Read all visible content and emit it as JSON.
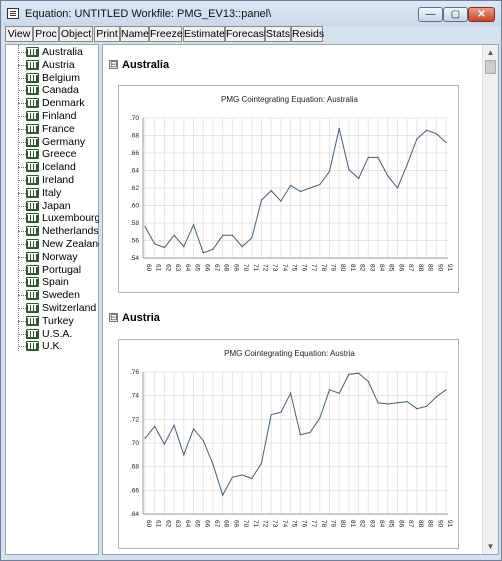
{
  "window": {
    "title": "Equation: UNTITLED   Workfile: PMG_EV13::panel\\",
    "min_glyph": "—",
    "max_glyph": "▢",
    "close_glyph": "✕"
  },
  "toolbar": {
    "buttons": [
      "View",
      "Proc",
      "Object",
      "Print",
      "Name",
      "Freeze",
      "Estimate",
      "Forecast",
      "Stats",
      "Resids"
    ]
  },
  "tree": {
    "items": [
      "Australia",
      "Austria",
      "Belgium",
      "Canada",
      "Denmark",
      "Finland",
      "France",
      "Germany",
      "Greece",
      "Iceland",
      "Ireland",
      "Italy",
      "Japan",
      "Luxembourg",
      "Netherlands",
      "New Zealand",
      "Norway",
      "Portugal",
      "Spain",
      "Sweden",
      "Switzerland",
      "Turkey",
      "U.S.A.",
      "U.K."
    ]
  },
  "sections": [
    {
      "title": "Australia",
      "toggle": "⊟"
    },
    {
      "title": "Austria",
      "toggle": "⊟"
    }
  ],
  "chart_data": [
    {
      "type": "line",
      "title": "PMG Cointegrating Equation: Australia",
      "x": [
        "60",
        "61",
        "62",
        "63",
        "64",
        "65",
        "66",
        "67",
        "68",
        "69",
        "70",
        "71",
        "72",
        "73",
        "74",
        "75",
        "76",
        "77",
        "78",
        "79",
        "80",
        "81",
        "82",
        "83",
        "84",
        "85",
        "86",
        "87",
        "88",
        "89",
        "90",
        "91"
      ],
      "values": [
        0.576,
        0.556,
        0.552,
        0.566,
        0.553,
        0.578,
        0.546,
        0.55,
        0.566,
        0.566,
        0.553,
        0.563,
        0.606,
        0.617,
        0.605,
        0.623,
        0.616,
        0.62,
        0.624,
        0.639,
        0.688,
        0.641,
        0.631,
        0.655,
        0.655,
        0.634,
        0.62,
        0.647,
        0.676,
        0.686,
        0.682,
        0.672
      ],
      "yticks": [
        ".54",
        ".56",
        ".58",
        ".60",
        ".62",
        ".64",
        ".66",
        ".68",
        ".70"
      ],
      "ylim": [
        0.54,
        0.7
      ],
      "color": "#4a5a78"
    },
    {
      "type": "line",
      "title": "PMG Cointegrating Equation: Austria",
      "x": [
        "60",
        "61",
        "62",
        "63",
        "64",
        "65",
        "66",
        "67",
        "68",
        "69",
        "70",
        "71",
        "72",
        "73",
        "74",
        "75",
        "76",
        "77",
        "78",
        "79",
        "80",
        "81",
        "82",
        "83",
        "84",
        "85",
        "86",
        "87",
        "88",
        "89",
        "90",
        "91"
      ],
      "values": [
        0.704,
        0.714,
        0.699,
        0.715,
        0.69,
        0.712,
        0.702,
        0.682,
        0.656,
        0.671,
        0.673,
        0.67,
        0.683,
        0.724,
        0.726,
        0.742,
        0.707,
        0.709,
        0.721,
        0.745,
        0.742,
        0.758,
        0.759,
        0.752,
        0.734,
        0.733,
        0.734,
        0.735,
        0.729,
        0.731,
        0.739,
        0.745
      ],
      "yticks": [
        ".64",
        ".66",
        ".68",
        ".70",
        ".72",
        ".74",
        ".76"
      ],
      "ylim": [
        0.64,
        0.76
      ],
      "color": "#4a5a78"
    }
  ]
}
